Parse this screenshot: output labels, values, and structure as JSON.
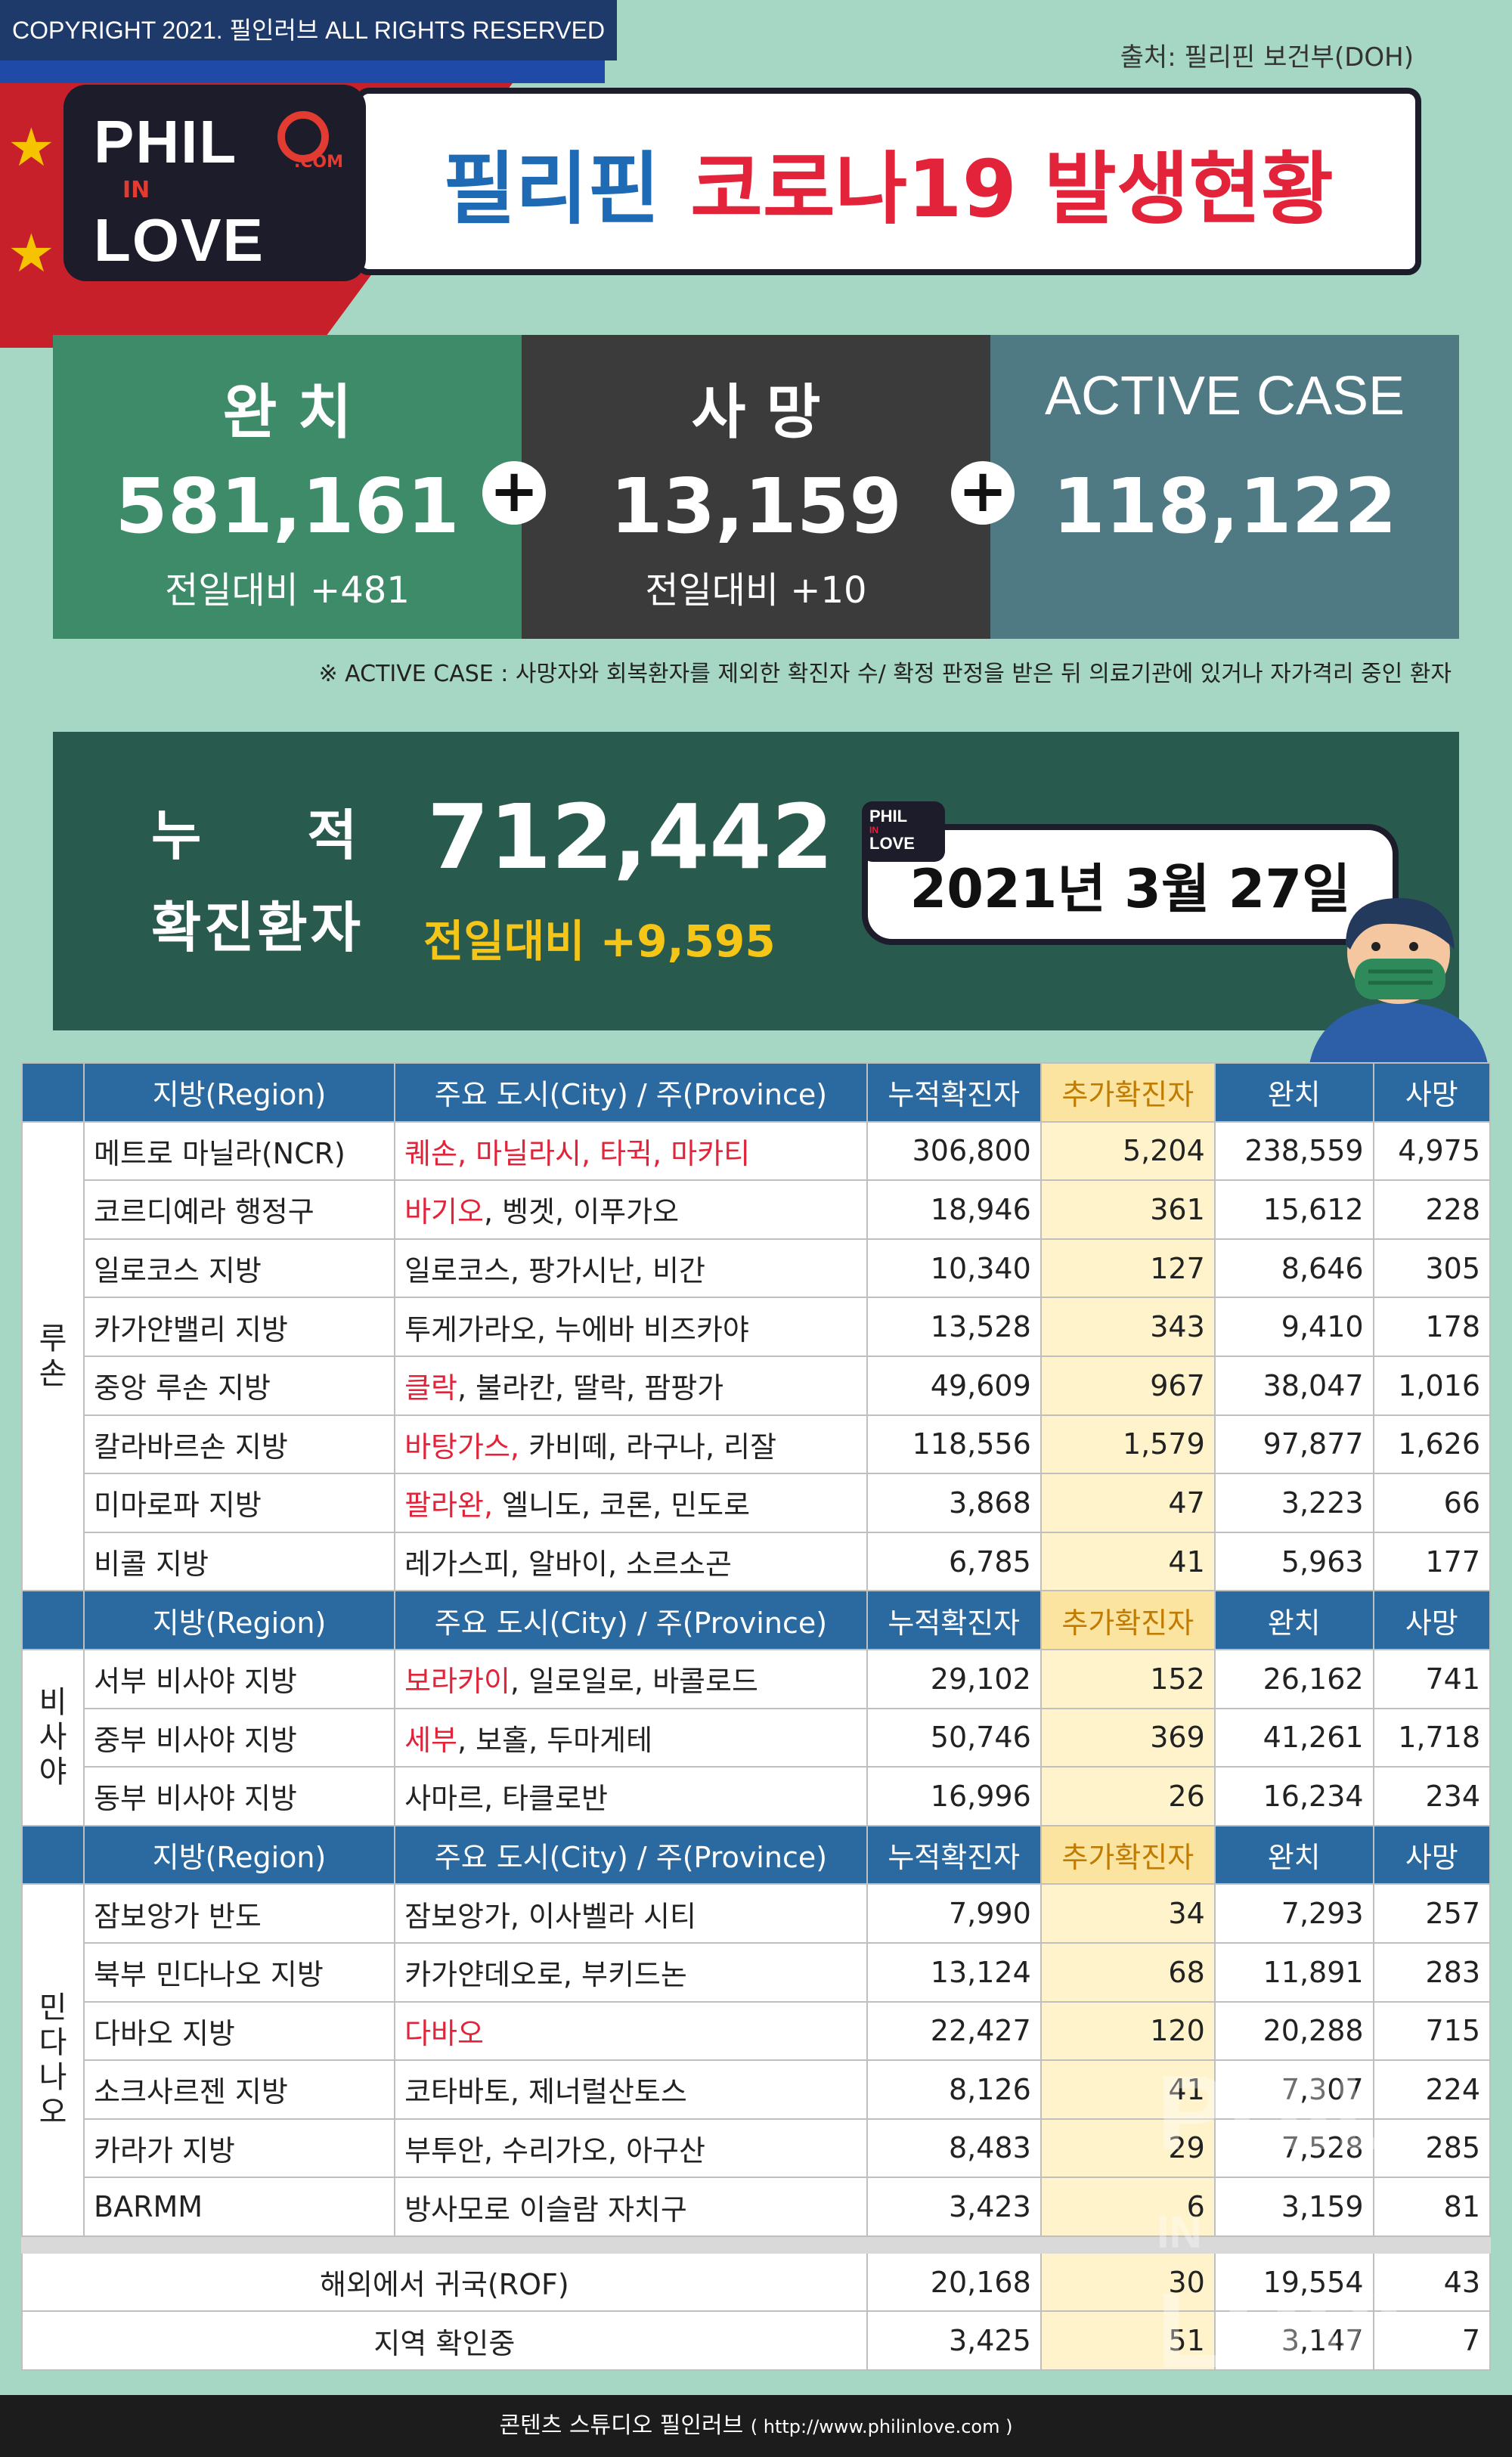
{
  "copyright": "COPYRIGHT 2021. 필인러브 ALL RIGHTS RESERVED",
  "source": "출처: 필리핀 보건부(DOH)",
  "logo": {
    "line1": "PHIL",
    "line2": "IN",
    "line3": "LOVE",
    "dotcom": ".COM"
  },
  "title": {
    "part1": "필리핀",
    "part2": "코로나19 발생현황"
  },
  "stats": [
    {
      "label": "완 치",
      "value": "581,161",
      "sub": "전일대비 +481"
    },
    {
      "label": "사 망",
      "value": "13,159",
      "sub": "전일대비 +10"
    },
    {
      "label": "ACTIVE CASE",
      "value": "118,122",
      "sub": ""
    }
  ],
  "plus_symbol": "+",
  "note": "※ ACTIVE CASE : 사망자와 회복환자를 제외한 확진자 수/ 확정 판정을 받은 뒤 의료기관에 있거나 자가격리 중인 환자",
  "cumulative": {
    "label1": "누적",
    "label2": "확진환자",
    "value": "712,442",
    "sub": "전일대비 +9,595"
  },
  "date": "2021년 3월 27일",
  "mini_logo": {
    "line1": "PHIL",
    "line2": "IN",
    "line3": "LOVE"
  },
  "table": {
    "headers": [
      "지방(Region)",
      "주요 도시(City) / 주(Province)",
      "누적확진자",
      "추가확진자",
      "완치",
      "사망"
    ],
    "groups": [
      {
        "area": "루\n손",
        "rows": [
          {
            "region": "메트로 마닐라(NCR)",
            "city_red": "퀘손, 마닐라시, 타귁, 마카티",
            "city": "",
            "total": "306,800",
            "added": "5,204",
            "recovered": "238,559",
            "deaths": "4,975"
          },
          {
            "region": "코르디예라 행정구",
            "city_red": "바기오",
            "city": ", 벵겟, 이푸가오",
            "total": "18,946",
            "added": "361",
            "recovered": "15,612",
            "deaths": "228"
          },
          {
            "region": "일로코스 지방",
            "city_red": "",
            "city": "일로코스, 팡가시난, 비간",
            "total": "10,340",
            "added": "127",
            "recovered": "8,646",
            "deaths": "305"
          },
          {
            "region": "카가얀밸리 지방",
            "city_red": "",
            "city": "투게가라오, 누에바 비즈카야",
            "total": "13,528",
            "added": "343",
            "recovered": "9,410",
            "deaths": "178"
          },
          {
            "region": "중앙 루손 지방",
            "city_red": "클락",
            "city": ", 불라칸, 딸락, 팜팡가",
            "total": "49,609",
            "added": "967",
            "recovered": "38,047",
            "deaths": "1,016"
          },
          {
            "region": "칼라바르손 지방",
            "city_red": "바탕가스,",
            "city": " 카비떼, 라구나, 리잘",
            "total": "118,556",
            "added": "1,579",
            "recovered": "97,877",
            "deaths": "1,626"
          },
          {
            "region": "미마로파 지방",
            "city_red": "팔라완,",
            "city": " 엘니도, 코론, 민도로",
            "total": "3,868",
            "added": "47",
            "recovered": "3,223",
            "deaths": "66"
          },
          {
            "region": "비콜 지방",
            "city_red": "",
            "city": "레가스피, 알바이, 소르소곤",
            "total": "6,785",
            "added": "41",
            "recovered": "5,963",
            "deaths": "177"
          }
        ]
      },
      {
        "area": "비\n사\n야",
        "rows": [
          {
            "region": "서부 비사야 지방",
            "city_red": "보라카이",
            "city": ", 일로일로, 바콜로드",
            "total": "29,102",
            "added": "152",
            "recovered": "26,162",
            "deaths": "741"
          },
          {
            "region": "중부 비사야 지방",
            "city_red": "세부",
            "city": ", 보홀, 두마게테",
            "total": "50,746",
            "added": "369",
            "recovered": "41,261",
            "deaths": "1,718"
          },
          {
            "region": "동부 비사야 지방",
            "city_red": "",
            "city": "사마르, 타클로반",
            "total": "16,996",
            "added": "26",
            "recovered": "16,234",
            "deaths": "234"
          }
        ]
      },
      {
        "area": "민\n다\n나\n오",
        "rows": [
          {
            "region": "잠보앙가 반도",
            "city_red": "",
            "city": "잠보앙가, 이사벨라 시티",
            "total": "7,990",
            "added": "34",
            "recovered": "7,293",
            "deaths": "257"
          },
          {
            "region": "북부 민다나오 지방",
            "city_red": "",
            "city": "카가얀데오로, 부키드논",
            "total": "13,124",
            "added": "68",
            "recovered": "11,891",
            "deaths": "283"
          },
          {
            "region": "다바오 지방",
            "city_red": "다바오",
            "city": "",
            "total": "22,427",
            "added": "120",
            "recovered": "20,288",
            "deaths": "715"
          },
          {
            "region": "소크사르젠 지방",
            "city_red": "",
            "city": "코타바토, 제너럴산토스",
            "total": "8,126",
            "added": "41",
            "recovered": "7,307",
            "deaths": "224"
          },
          {
            "region": "카라가 지방",
            "city_red": "",
            "city": "부투안, 수리가오, 아구산",
            "total": "8,483",
            "added": "29",
            "recovered": "7,528",
            "deaths": "285"
          },
          {
            "region": "BARMM",
            "city_red": "",
            "city": "방사모로 이슬람 자치구",
            "total": "3,423",
            "added": "6",
            "recovered": "3,159",
            "deaths": "81"
          }
        ]
      }
    ],
    "extra_rows": [
      {
        "label": "해외에서 귀국(ROF)",
        "total": "20,168",
        "added": "30",
        "recovered": "19,554",
        "deaths": "43"
      },
      {
        "label": "지역 확인중",
        "total": "3,425",
        "added": "51",
        "recovered": "3,147",
        "deaths": "7"
      }
    ]
  },
  "footer": {
    "text": "콘텐츠 스튜디오 필인러브",
    "url": "( http://www.philinlove.com )"
  },
  "colors": {
    "background": "#a6d6c4",
    "recovered": "#3e8b6a",
    "deaths": "#3b3b3b",
    "active": "#4f7a83",
    "cumulative": "#285a4e",
    "header": "#2b6aa0",
    "highlight": "#fff3cc",
    "red": "#e2233a",
    "blue": "#1f6ab5"
  }
}
